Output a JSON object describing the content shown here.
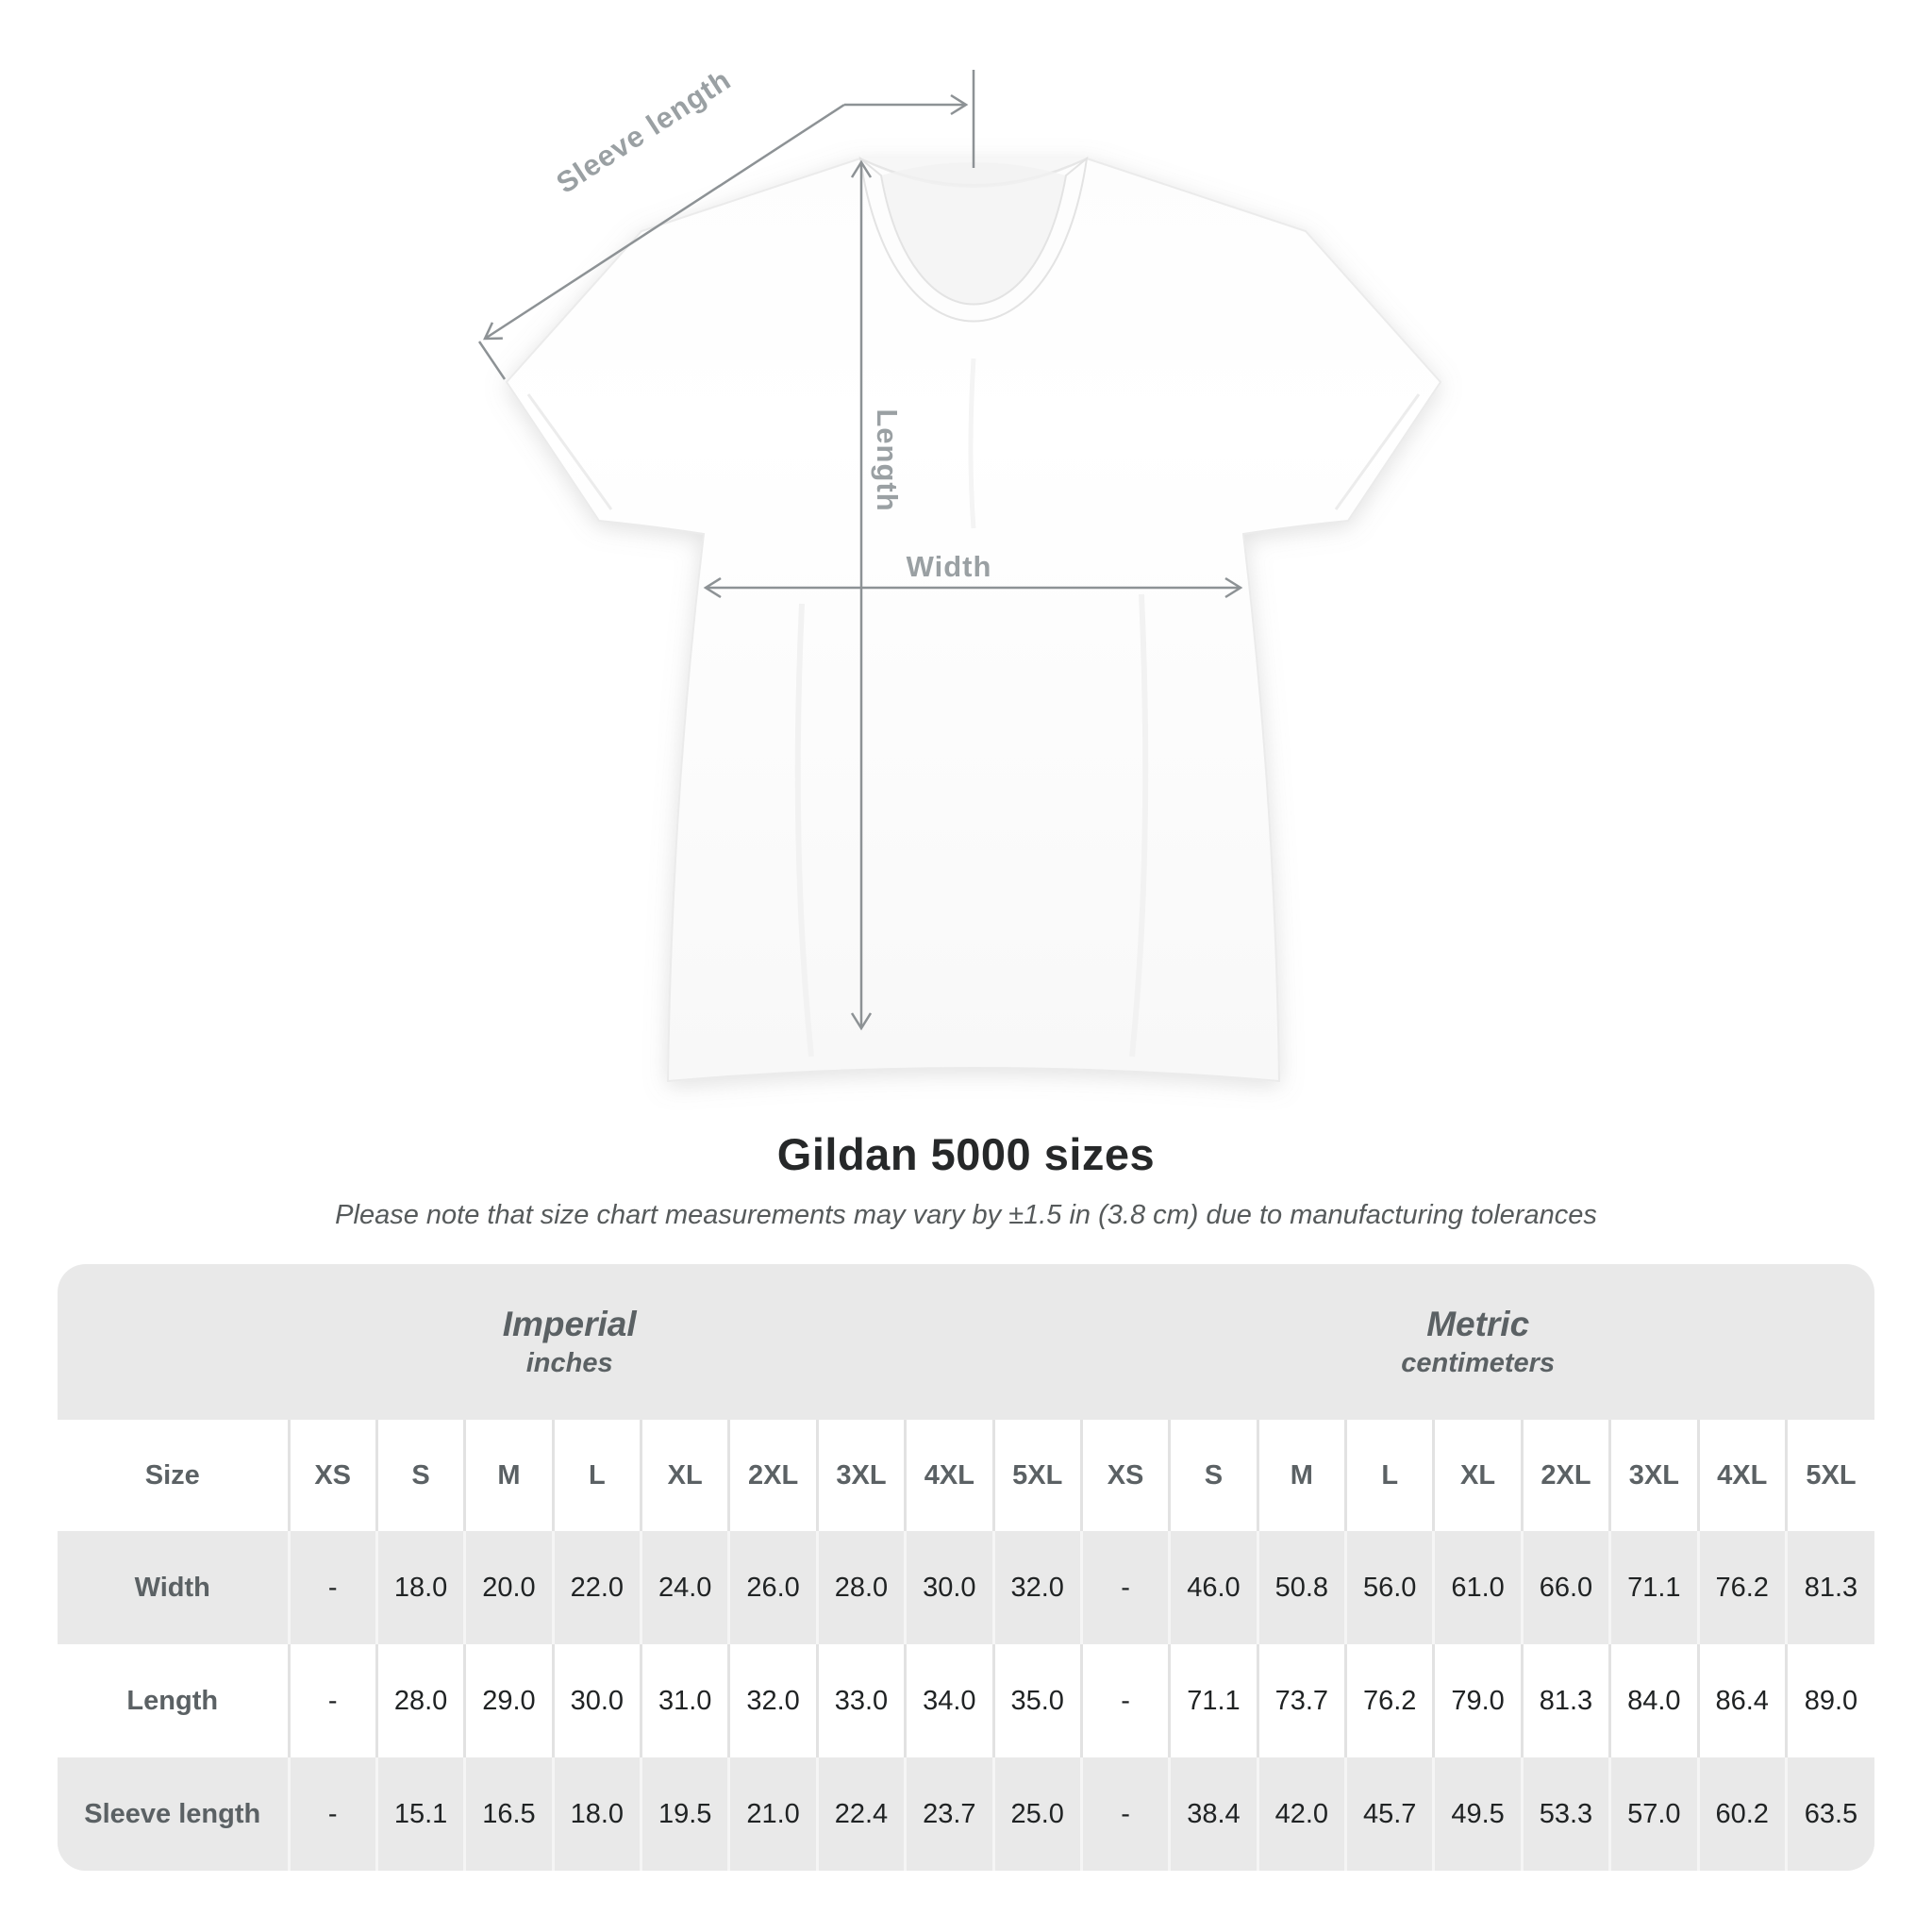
{
  "title": "Gildan 5000 sizes",
  "subtitle": "Please note that size chart measurements may vary by ±1.5 in (3.8 cm) due to manufacturing tolerances",
  "diagram": {
    "sleeve_label": "Sleeve length",
    "length_label": "Length",
    "width_label": "Width"
  },
  "colors": {
    "arrow_gray": "#8d9295",
    "diagram_label_gray": "#9aa0a3",
    "table_bg_gray": "#e9e9e9",
    "header_text_gray": "#5b6164",
    "data_text_dark": "#202324",
    "title_text_dark": "#262829"
  },
  "chart_data": {
    "type": "table",
    "title": "Gildan 5000 sizes",
    "note": "Please note that size chart measurements may vary by ±1.5 in (3.8 cm) due to manufacturing tolerances",
    "corner_label": "Size",
    "unit_groups": [
      {
        "label": "Imperial",
        "unit": "inches"
      },
      {
        "label": "Metric",
        "unit": "centimeters"
      }
    ],
    "sizes": [
      "XS",
      "S",
      "M",
      "L",
      "XL",
      "2XL",
      "3XL",
      "4XL",
      "5XL"
    ],
    "measurements": [
      {
        "label": "Width",
        "imperial": [
          "-",
          "18.0",
          "20.0",
          "22.0",
          "24.0",
          "26.0",
          "28.0",
          "30.0",
          "32.0"
        ],
        "metric": [
          "-",
          "46.0",
          "50.8",
          "56.0",
          "61.0",
          "66.0",
          "71.1",
          "76.2",
          "81.3"
        ]
      },
      {
        "label": "Length",
        "imperial": [
          "-",
          "28.0",
          "29.0",
          "30.0",
          "31.0",
          "32.0",
          "33.0",
          "34.0",
          "35.0"
        ],
        "metric": [
          "-",
          "71.1",
          "73.7",
          "76.2",
          "79.0",
          "81.3",
          "84.0",
          "86.4",
          "89.0"
        ]
      },
      {
        "label": "Sleeve length",
        "imperial": [
          "-",
          "15.1",
          "16.5",
          "18.0",
          "19.5",
          "21.0",
          "22.4",
          "23.7",
          "25.0"
        ],
        "metric": [
          "-",
          "38.4",
          "42.0",
          "45.7",
          "49.5",
          "53.3",
          "57.0",
          "60.2",
          "63.5"
        ]
      }
    ]
  }
}
